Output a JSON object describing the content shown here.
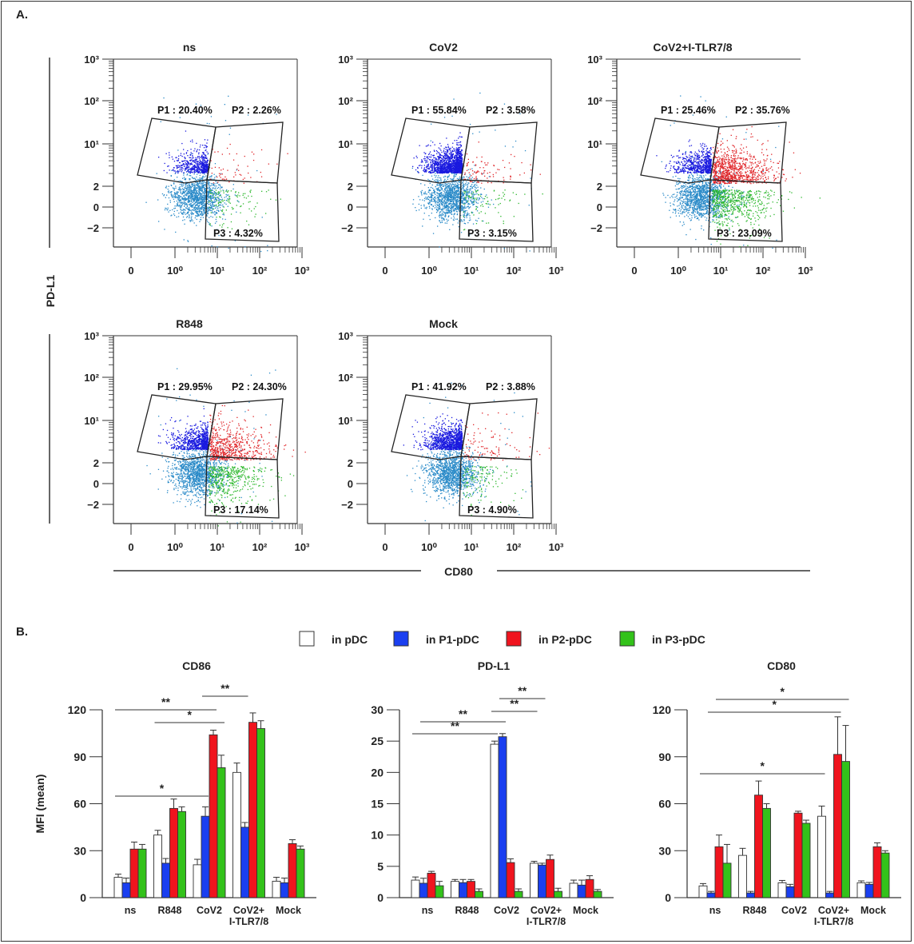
{
  "panel_a_label": "A.",
  "panel_b_label": "B.",
  "panel_a": {
    "y_axis_label": "PD-L1",
    "x_axis_label": "CD80",
    "y_ticks": [
      "10³",
      "10²",
      "10¹",
      "2",
      "0",
      "−2"
    ],
    "x_ticks": [
      "0",
      "10⁰",
      "10¹",
      "10²",
      "10³"
    ],
    "plots": [
      {
        "title": "ns",
        "p1": "P1 : 20.40%",
        "p2": "P2 : 2.26%",
        "p3": "P3 : 4.32%",
        "density": {
          "p1": 0.204,
          "p2": 0.0226,
          "p3": 0.0432
        },
        "right_border": true
      },
      {
        "title": "CoV2",
        "p1": "P1 : 55.84%",
        "p2": "P2 : 3.58%",
        "p3": "P3 : 3.15%",
        "density": {
          "p1": 0.5584,
          "p2": 0.0358,
          "p3": 0.0315
        },
        "right_border": true
      },
      {
        "title": "CoV2+I-TLR7/8",
        "p1": "P1 : 25.46%",
        "p2": "P2 : 35.76%",
        "p3": "P3 : 23.09%",
        "density": {
          "p1": 0.2546,
          "p2": 0.3576,
          "p3": 0.2309
        },
        "right_border": false
      },
      {
        "title": "R848",
        "p1": "P1 : 29.95%",
        "p2": "P2 : 24.30%",
        "p3": "P3 : 17.14%",
        "density": {
          "p1": 0.2995,
          "p2": 0.243,
          "p3": 0.1714
        },
        "right_border": true
      },
      {
        "title": "Mock",
        "p1": "P1 : 41.92%",
        "p2": "P2 : 3.88%",
        "p3": "P3 : 4.90%",
        "density": {
          "p1": 0.4192,
          "p2": 0.0388,
          "p3": 0.049
        },
        "right_border": true
      }
    ],
    "colors": {
      "ungated": "#2a8ac8",
      "p1": "#1a1adf",
      "p2": "#e0262a",
      "p3": "#2eb82e"
    }
  },
  "chart_data": [
    {
      "type": "bar",
      "title": "CD86",
      "ylabel": "MFI (mean)",
      "xlabel": "",
      "ylim": [
        0,
        120
      ],
      "yticks": [
        0,
        30,
        60,
        90,
        120
      ],
      "categories": [
        "ns",
        "R848",
        "CoV2",
        "CoV2+\nI-TLR7/8",
        "Mock"
      ],
      "series": [
        {
          "name": "in pDC",
          "values": [
            13,
            40,
            21,
            80,
            10.5
          ],
          "errors": [
            2,
            3,
            3.5,
            6,
            2.5
          ]
        },
        {
          "name": "in P1-pDC",
          "values": [
            9.5,
            22,
            52,
            45,
            9.5
          ],
          "errors": [
            3,
            3,
            6,
            3,
            3
          ]
        },
        {
          "name": "in P2-pDC",
          "values": [
            31,
            57,
            104,
            112,
            34.5
          ],
          "errors": [
            4.5,
            6,
            3,
            6,
            2.5
          ]
        },
        {
          "name": "in P3-pDC",
          "values": [
            31,
            55,
            83,
            108,
            31
          ],
          "errors": [
            3,
            3,
            8,
            5,
            2
          ]
        }
      ],
      "significance": [
        {
          "label": "**",
          "from": [
            0,
            0
          ],
          "to": [
            2,
            2
          ]
        },
        {
          "label": "*",
          "from": [
            1,
            0
          ],
          "to": [
            2,
            3
          ]
        },
        {
          "label": "**",
          "from": [
            2,
            1
          ],
          "to": [
            3,
            1
          ]
        },
        {
          "label": "*",
          "from": [
            0,
            0
          ],
          "to": [
            2,
            1
          ]
        }
      ]
    },
    {
      "type": "bar",
      "title": "PD-L1",
      "ylabel": "",
      "xlabel": "",
      "ylim": [
        0,
        30
      ],
      "yticks": [
        0,
        5,
        10,
        15,
        20,
        25,
        30
      ],
      "categories": [
        "ns",
        "R848",
        "CoV2",
        "CoV2+\nI-TLR7/8",
        "Mock"
      ],
      "series": [
        {
          "name": "in pDC",
          "values": [
            2.8,
            2.6,
            24.5,
            5.5,
            2.3
          ],
          "errors": [
            0.5,
            0.3,
            0.5,
            0.3,
            0.5
          ]
        },
        {
          "name": "in P1-pDC",
          "values": [
            2.3,
            2.4,
            25.7,
            5.2,
            2.0
          ],
          "errors": [
            0.8,
            0.5,
            0.5,
            0.3,
            0.8
          ]
        },
        {
          "name": "in P2-pDC",
          "values": [
            3.9,
            2.6,
            5.6,
            6.1,
            2.9
          ],
          "errors": [
            0.3,
            0.3,
            0.6,
            0.7,
            0.6
          ]
        },
        {
          "name": "in P3-pDC",
          "values": [
            1.9,
            1.0,
            1.0,
            1.0,
            1.0
          ],
          "errors": [
            0.7,
            0.4,
            0.4,
            0.5,
            0.3
          ]
        }
      ],
      "significance": [
        {
          "label": "**",
          "from": [
            0,
            0
          ],
          "to": [
            2,
            0
          ]
        },
        {
          "label": "**",
          "from": [
            0,
            1
          ],
          "to": [
            2,
            1
          ]
        },
        {
          "label": "**",
          "from": [
            2,
            0
          ],
          "to": [
            3,
            0
          ]
        },
        {
          "label": "**",
          "from": [
            2,
            1
          ],
          "to": [
            3,
            1
          ]
        }
      ]
    },
    {
      "type": "bar",
      "title": "CD80",
      "ylabel": "",
      "xlabel": "",
      "ylim": [
        0,
        120
      ],
      "yticks": [
        0,
        30,
        60,
        90,
        120
      ],
      "categories": [
        "ns",
        "R848",
        "CoV2",
        "CoV2+\nI-TLR7/8",
        "Mock"
      ],
      "series": [
        {
          "name": "in pDC",
          "values": [
            7.5,
            27,
            9.5,
            52,
            9.5
          ],
          "errors": [
            1.5,
            4.5,
            1.5,
            6.5,
            1.2
          ]
        },
        {
          "name": "in P1-pDC",
          "values": [
            3,
            3,
            7,
            3,
            8.5
          ],
          "errors": [
            1,
            1,
            1.5,
            1,
            1.2
          ]
        },
        {
          "name": "in P2-pDC",
          "values": [
            32.5,
            65.5,
            54,
            91.5,
            32.5
          ],
          "errors": [
            7.5,
            9,
            1.2,
            24,
            2.5
          ]
        },
        {
          "name": "in P3-pDC",
          "values": [
            22,
            57,
            47.5,
            87,
            28.5
          ],
          "errors": [
            12,
            3,
            2,
            23,
            1.5
          ]
        }
      ],
      "significance": [
        {
          "label": "*",
          "from": [
            0,
            0
          ],
          "to": [
            3,
            0
          ]
        },
        {
          "label": "*",
          "from": [
            0,
            1
          ],
          "to": [
            3,
            2
          ]
        },
        {
          "label": "*",
          "from": [
            0,
            2
          ],
          "to": [
            3,
            3
          ]
        }
      ]
    }
  ],
  "legend": [
    {
      "label": "in pDC",
      "color": "#ffffff"
    },
    {
      "label": "in P1-pDC",
      "color": "#1a3ff0"
    },
    {
      "label": "in P2-pDC",
      "color": "#f0141e"
    },
    {
      "label": "in P3-pDC",
      "color": "#33c21a"
    }
  ]
}
